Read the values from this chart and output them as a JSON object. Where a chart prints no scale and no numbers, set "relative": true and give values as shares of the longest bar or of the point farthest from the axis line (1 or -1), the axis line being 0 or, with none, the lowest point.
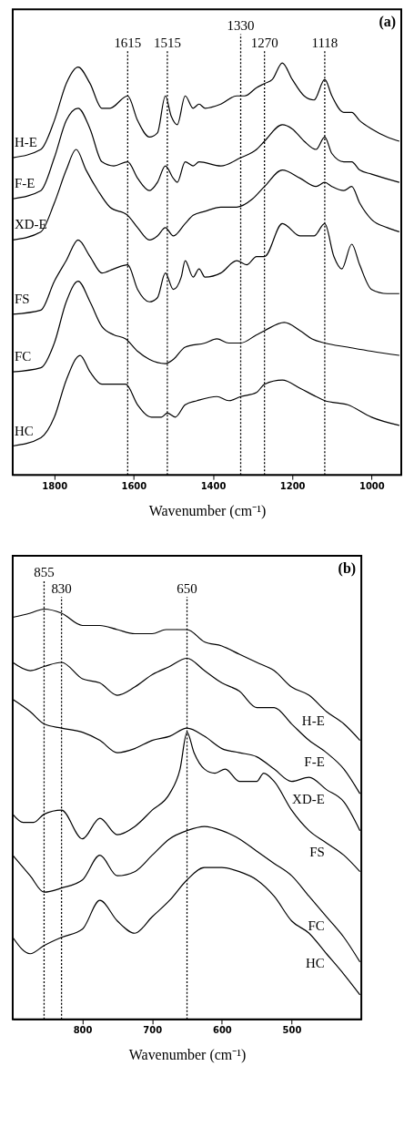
{
  "chart_data": [
    {
      "type": "line",
      "relative": true,
      "xlabel": "Wavenumber (cm⁻¹)",
      "xlim": [
        1905,
        925
      ],
      "xticks": [
        1800,
        1600,
        1400,
        1200,
        1000
      ],
      "tick_labels": "x",
      "grid": false,
      "line_style": "solid",
      "annotations": [
        "(a)"
      ],
      "ref_lines": [
        {
          "axis": "x",
          "value": 1615,
          "label": "1615",
          "line_style": "dotted"
        },
        {
          "axis": "x",
          "value": 1515,
          "label": "1515",
          "line_style": "dotted"
        },
        {
          "axis": "x",
          "value": 1330,
          "label": "1330",
          "line_style": "dotted"
        },
        {
          "axis": "x",
          "value": 1270,
          "label": "1270",
          "line_style": "dotted"
        },
        {
          "axis": "x",
          "value": 1118,
          "label": "1118",
          "line_style": "dotted"
        }
      ],
      "series": [
        {
          "name": "H-E",
          "color": "#000000",
          "x": [
            1905,
            1834,
            1800,
            1770,
            1740,
            1710,
            1680,
            1660,
            1615,
            1590,
            1560,
            1540,
            1520,
            1505,
            1490,
            1470,
            1450,
            1435,
            1420,
            1380,
            1340,
            1320,
            1290,
            1270,
            1250,
            1225,
            1200,
            1170,
            1145,
            1118,
            1100,
            1070,
            1050,
            1030,
            1000,
            960,
            930
          ],
          "values": [
            0.77,
            0.79,
            0.86,
            0.95,
            0.99,
            0.95,
            0.89,
            0.89,
            0.92,
            0.86,
            0.82,
            0.83,
            0.92,
            0.87,
            0.85,
            0.92,
            0.89,
            0.9,
            0.89,
            0.9,
            0.92,
            0.92,
            0.94,
            0.95,
            0.96,
            1.0,
            0.96,
            0.92,
            0.91,
            0.96,
            0.92,
            0.88,
            0.88,
            0.86,
            0.84,
            0.82,
            0.81
          ]
        },
        {
          "name": "F-E",
          "color": "#000000",
          "x": [
            1905,
            1834,
            1800,
            1770,
            1740,
            1710,
            1680,
            1650,
            1615,
            1590,
            1560,
            1540,
            1520,
            1500,
            1490,
            1470,
            1450,
            1435,
            1380,
            1330,
            1290,
            1270,
            1225,
            1200,
            1170,
            1140,
            1118,
            1100,
            1070,
            1050,
            1030,
            1000,
            930
          ],
          "values": [
            0.67,
            0.69,
            0.77,
            0.86,
            0.89,
            0.84,
            0.76,
            0.75,
            0.76,
            0.72,
            0.69,
            0.71,
            0.75,
            0.72,
            0.71,
            0.76,
            0.75,
            0.76,
            0.75,
            0.77,
            0.79,
            0.81,
            0.85,
            0.84,
            0.81,
            0.79,
            0.82,
            0.78,
            0.76,
            0.76,
            0.74,
            0.73,
            0.71
          ]
        },
        {
          "name": "XD-E",
          "color": "#000000",
          "x": [
            1905,
            1834,
            1800,
            1770,
            1745,
            1720,
            1690,
            1660,
            1615,
            1590,
            1560,
            1540,
            1520,
            1500,
            1470,
            1450,
            1420,
            1380,
            1340,
            1300,
            1270,
            1225,
            1180,
            1140,
            1118,
            1100,
            1070,
            1050,
            1030,
            1000,
            960,
            930
          ],
          "values": [
            0.57,
            0.59,
            0.66,
            0.74,
            0.79,
            0.74,
            0.69,
            0.65,
            0.63,
            0.6,
            0.57,
            0.58,
            0.6,
            0.58,
            0.61,
            0.63,
            0.64,
            0.65,
            0.65,
            0.67,
            0.7,
            0.74,
            0.72,
            0.7,
            0.71,
            0.7,
            0.69,
            0.7,
            0.66,
            0.62,
            0.6,
            0.59
          ]
        },
        {
          "name": "FS",
          "color": "#000000",
          "x": [
            1905,
            1834,
            1800,
            1770,
            1740,
            1710,
            1680,
            1650,
            1615,
            1590,
            1560,
            1540,
            1520,
            1500,
            1480,
            1470,
            1450,
            1435,
            1420,
            1380,
            1340,
            1315,
            1290,
            1270,
            1225,
            1180,
            1145,
            1118,
            1095,
            1075,
            1050,
            1030,
            1000,
            960,
            930
          ],
          "values": [
            0.39,
            0.4,
            0.47,
            0.52,
            0.57,
            0.53,
            0.49,
            0.5,
            0.51,
            0.45,
            0.42,
            0.43,
            0.49,
            0.45,
            0.48,
            0.52,
            0.48,
            0.5,
            0.48,
            0.49,
            0.52,
            0.51,
            0.53,
            0.53,
            0.61,
            0.58,
            0.58,
            0.61,
            0.53,
            0.5,
            0.56,
            0.51,
            0.45,
            0.44,
            0.44
          ]
        },
        {
          "name": "FC",
          "color": "#000000",
          "x": [
            1905,
            1834,
            1800,
            1770,
            1740,
            1710,
            1680,
            1650,
            1620,
            1590,
            1560,
            1520,
            1500,
            1470,
            1420,
            1390,
            1360,
            1330,
            1290,
            1270,
            1220,
            1180,
            1150,
            1118,
            1060,
            1000,
            930
          ],
          "values": [
            0.25,
            0.26,
            0.32,
            0.42,
            0.47,
            0.42,
            0.36,
            0.34,
            0.33,
            0.3,
            0.28,
            0.27,
            0.28,
            0.31,
            0.32,
            0.33,
            0.32,
            0.32,
            0.34,
            0.35,
            0.37,
            0.35,
            0.33,
            0.32,
            0.31,
            0.3,
            0.29
          ]
        },
        {
          "name": "HC",
          "color": "#000000",
          "x": [
            1905,
            1834,
            1800,
            1770,
            1735,
            1710,
            1680,
            1650,
            1620,
            1590,
            1555,
            1530,
            1515,
            1495,
            1470,
            1440,
            1390,
            1360,
            1330,
            1290,
            1270,
            1225,
            1180,
            1140,
            1118,
            1060,
            1000,
            930
          ],
          "values": [
            0.07,
            0.09,
            0.14,
            0.23,
            0.29,
            0.25,
            0.22,
            0.22,
            0.22,
            0.17,
            0.14,
            0.14,
            0.15,
            0.14,
            0.17,
            0.18,
            0.19,
            0.18,
            0.19,
            0.2,
            0.22,
            0.23,
            0.21,
            0.19,
            0.18,
            0.17,
            0.14,
            0.12
          ]
        }
      ]
    },
    {
      "type": "line",
      "relative": true,
      "xlabel": "Wavenumber (cm⁻¹)",
      "xlim": [
        900,
        400
      ],
      "xticks": [
        800,
        700,
        600,
        500
      ],
      "tick_labels": "x",
      "grid": false,
      "line_style": "solid",
      "annotations": [
        "(b)"
      ],
      "ref_lines": [
        {
          "axis": "x",
          "value": 855,
          "label": "855",
          "line_style": "dotted"
        },
        {
          "axis": "x",
          "value": 830,
          "label": "830",
          "line_style": "dotted"
        },
        {
          "axis": "x",
          "value": 650,
          "label": "650",
          "line_style": "dotted"
        }
      ],
      "series": [
        {
          "name": "H-E",
          "color": "#000000",
          "x": [
            900,
            875,
            855,
            830,
            800,
            775,
            750,
            725,
            700,
            680,
            650,
            625,
            600,
            575,
            550,
            525,
            500,
            475,
            450,
            425,
            402
          ],
          "values": [
            0.98,
            0.99,
            1.0,
            0.99,
            0.96,
            0.96,
            0.95,
            0.94,
            0.94,
            0.95,
            0.95,
            0.92,
            0.91,
            0.89,
            0.87,
            0.85,
            0.81,
            0.79,
            0.75,
            0.72,
            0.68
          ]
        },
        {
          "name": "F-E",
          "color": "#000000",
          "x": [
            900,
            875,
            855,
            830,
            800,
            775,
            750,
            725,
            700,
            675,
            650,
            625,
            600,
            575,
            550,
            525,
            500,
            475,
            450,
            425,
            402
          ],
          "values": [
            0.87,
            0.85,
            0.86,
            0.87,
            0.83,
            0.82,
            0.79,
            0.81,
            0.84,
            0.86,
            0.88,
            0.85,
            0.82,
            0.8,
            0.76,
            0.76,
            0.72,
            0.68,
            0.65,
            0.61,
            0.55
          ]
        },
        {
          "name": "XD-E",
          "color": "#000000",
          "x": [
            900,
            875,
            855,
            830,
            800,
            775,
            750,
            725,
            700,
            675,
            650,
            625,
            600,
            575,
            550,
            525,
            500,
            475,
            450,
            425,
            402
          ],
          "values": [
            0.78,
            0.75,
            0.72,
            0.71,
            0.7,
            0.68,
            0.65,
            0.66,
            0.68,
            0.69,
            0.71,
            0.69,
            0.66,
            0.65,
            0.64,
            0.61,
            0.58,
            0.59,
            0.56,
            0.53,
            0.46
          ]
        },
        {
          "name": "FS",
          "color": "#000000",
          "x": [
            900,
            885,
            870,
            855,
            830,
            800,
            775,
            750,
            725,
            700,
            675,
            660,
            650,
            640,
            625,
            610,
            595,
            575,
            550,
            540,
            525,
            500,
            475,
            450,
            425,
            402
          ],
          "values": [
            0.5,
            0.48,
            0.48,
            0.5,
            0.51,
            0.44,
            0.49,
            0.45,
            0.47,
            0.51,
            0.55,
            0.61,
            0.7,
            0.65,
            0.61,
            0.6,
            0.61,
            0.58,
            0.58,
            0.6,
            0.58,
            0.51,
            0.46,
            0.43,
            0.4,
            0.36
          ]
        },
        {
          "name": "FC",
          "color": "#000000",
          "x": [
            900,
            875,
            855,
            830,
            800,
            775,
            750,
            725,
            700,
            675,
            650,
            625,
            600,
            575,
            550,
            525,
            500,
            475,
            450,
            425,
            402
          ],
          "values": [
            0.4,
            0.35,
            0.31,
            0.32,
            0.34,
            0.4,
            0.35,
            0.36,
            0.4,
            0.44,
            0.46,
            0.47,
            0.46,
            0.44,
            0.41,
            0.38,
            0.35,
            0.3,
            0.25,
            0.2,
            0.14
          ]
        },
        {
          "name": "HC",
          "color": "#000000",
          "x": [
            900,
            875,
            855,
            830,
            800,
            775,
            750,
            725,
            700,
            675,
            650,
            625,
            600,
            575,
            550,
            525,
            500,
            475,
            450,
            425,
            402
          ],
          "values": [
            0.2,
            0.16,
            0.18,
            0.2,
            0.22,
            0.29,
            0.24,
            0.21,
            0.25,
            0.29,
            0.34,
            0.37,
            0.37,
            0.36,
            0.34,
            0.3,
            0.24,
            0.21,
            0.16,
            0.11,
            0.06
          ]
        }
      ]
    }
  ]
}
